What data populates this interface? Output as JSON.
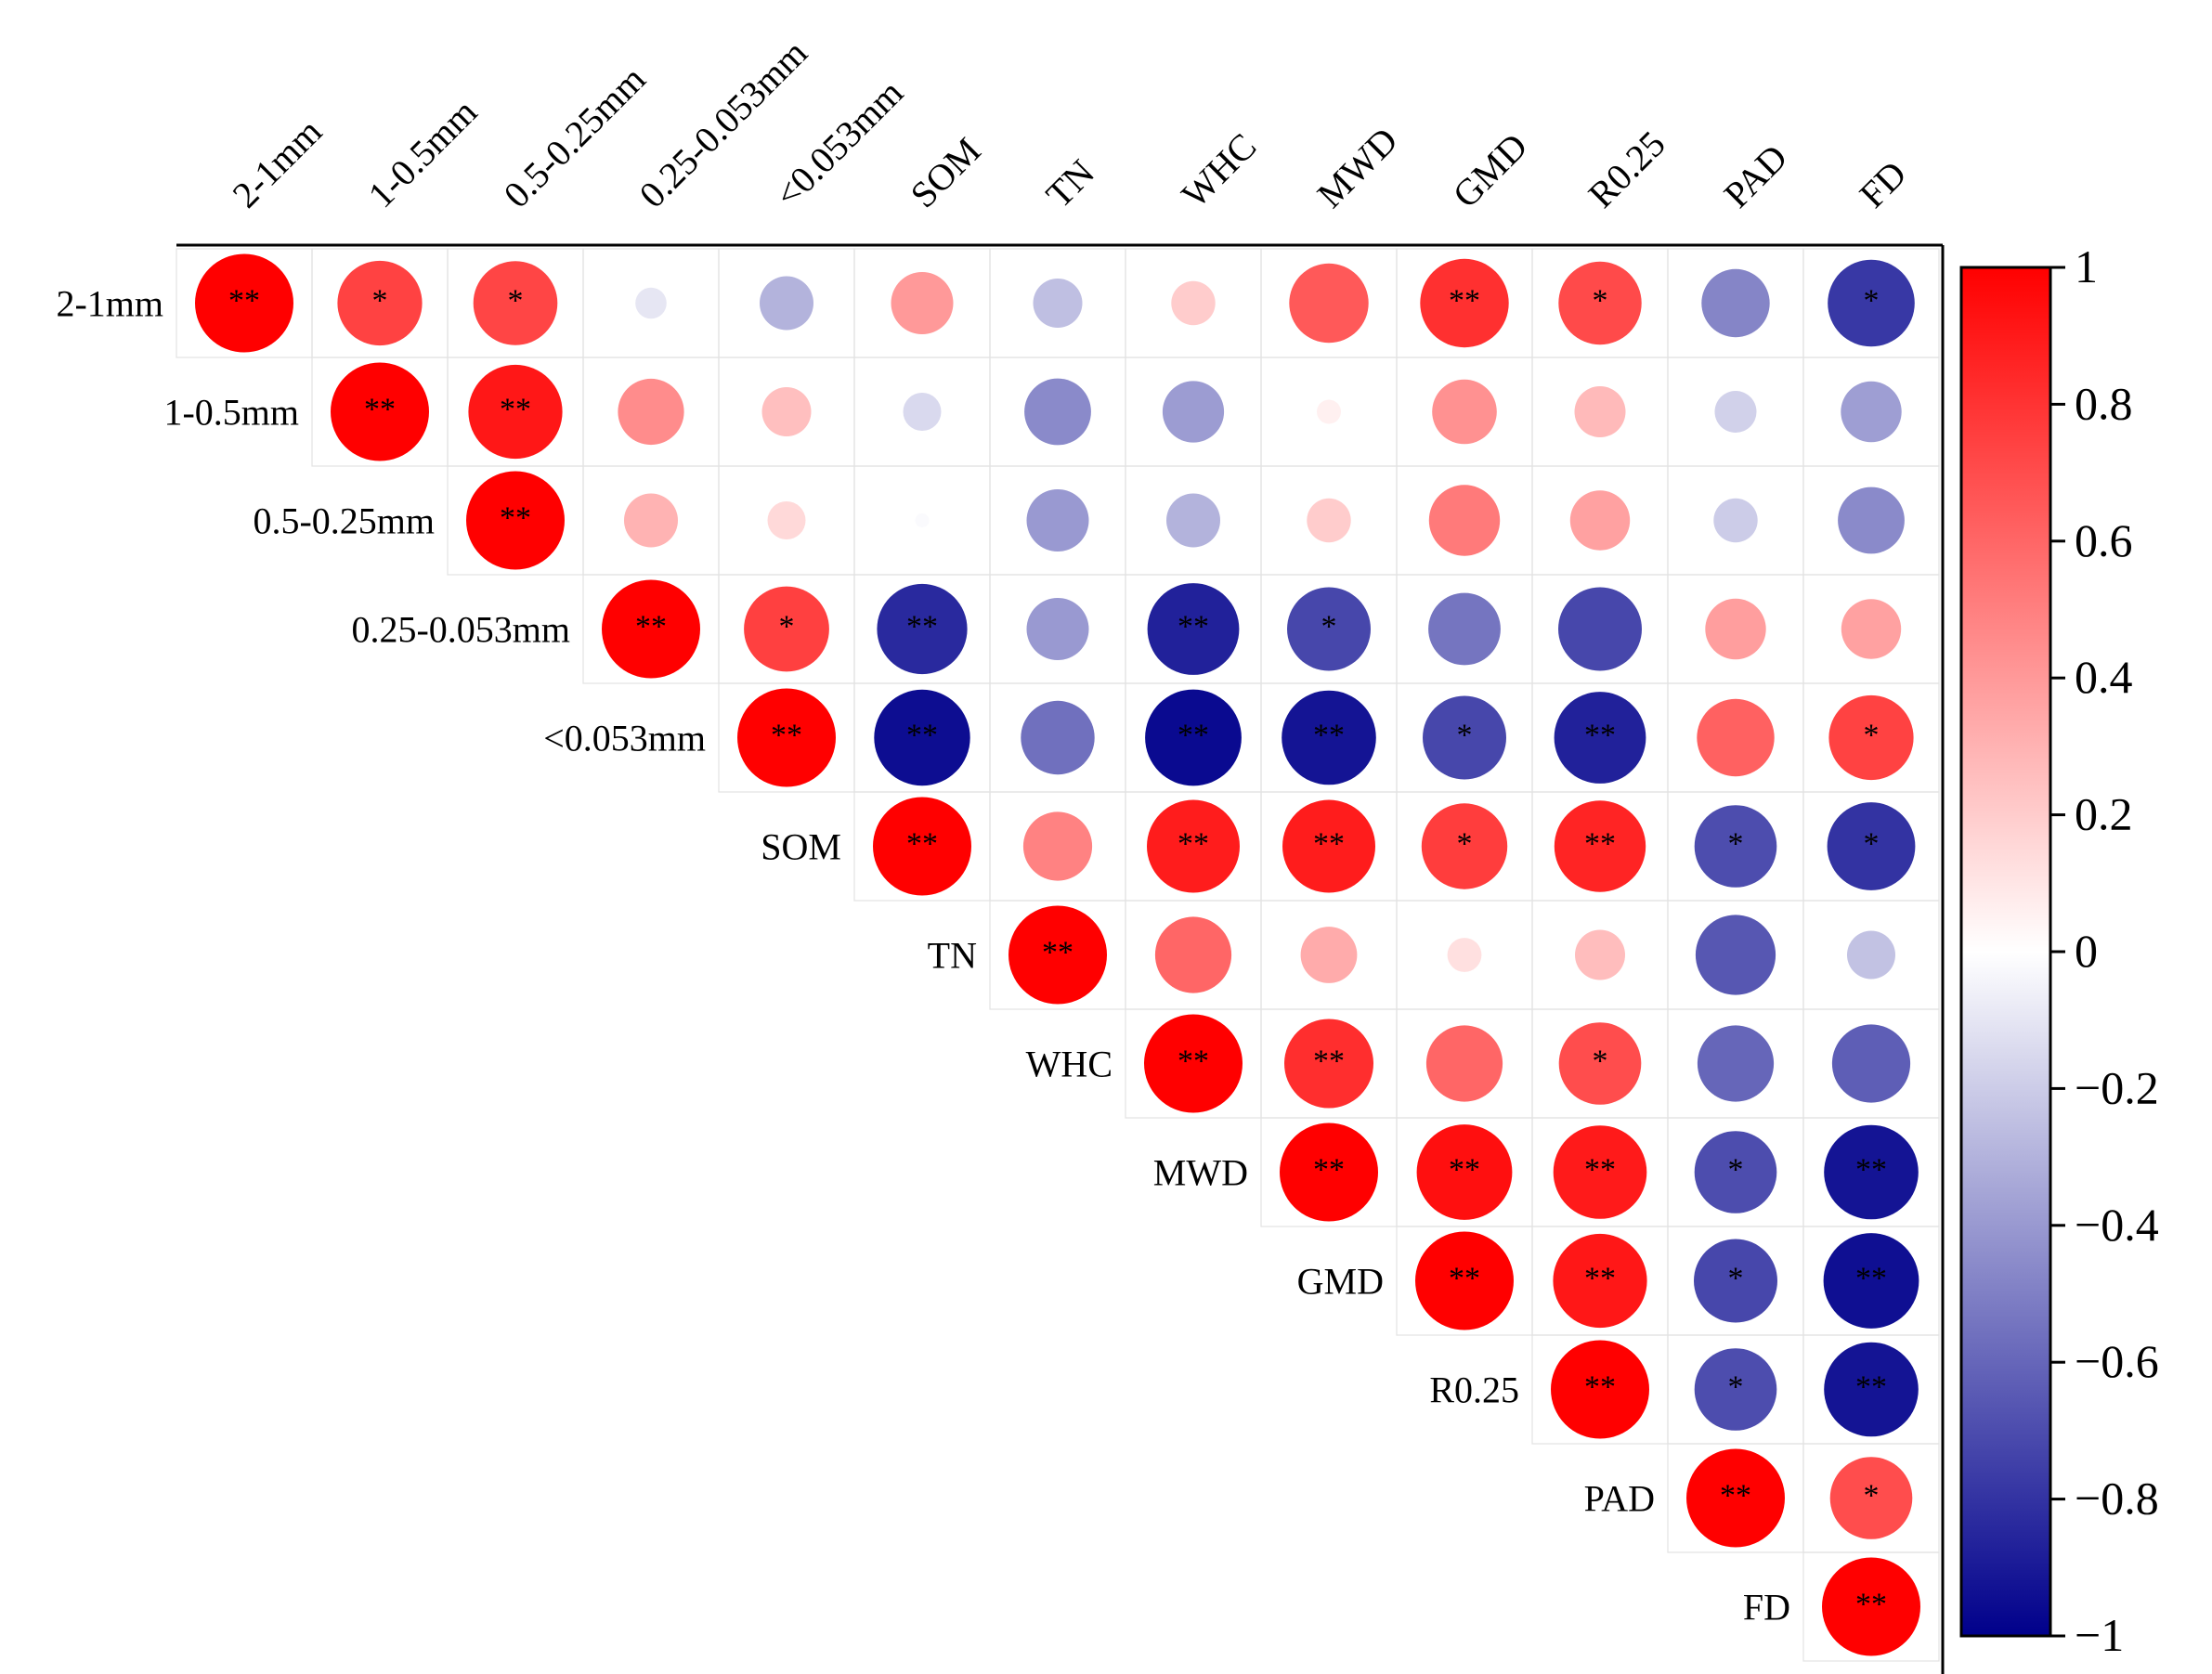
{
  "chart_data": {
    "type": "heatmap",
    "title": "",
    "variables": [
      "2-1mm",
      "1-0.5mm",
      "0.5-0.25mm",
      "0.25-0.053mm",
      "<0.053mm",
      "SOM",
      "TN",
      "WHC",
      "MWD",
      "GMD",
      "R0.25",
      "PAD",
      "FD"
    ],
    "matrix": [
      [
        1.0,
        0.74,
        0.73,
        -0.1,
        -0.3,
        0.4,
        -0.25,
        0.2,
        0.65,
        0.81,
        0.71,
        -0.48,
        -0.78
      ],
      [
        null,
        1.0,
        0.91,
        0.45,
        0.25,
        -0.15,
        -0.46,
        -0.39,
        0.06,
        0.43,
        0.27,
        -0.18,
        -0.38
      ],
      [
        null,
        null,
        1.0,
        0.3,
        0.15,
        -0.02,
        -0.4,
        -0.3,
        0.2,
        0.52,
        0.37,
        -0.2,
        -0.46
      ],
      [
        null,
        null,
        null,
        1.0,
        0.75,
        -0.84,
        -0.4,
        -0.87,
        -0.72,
        -0.54,
        -0.72,
        0.38,
        0.37
      ],
      [
        null,
        null,
        null,
        null,
        1.0,
        -0.95,
        -0.56,
        -0.96,
        -0.92,
        -0.72,
        -0.87,
        0.62,
        0.74
      ],
      [
        null,
        null,
        null,
        null,
        null,
        1.0,
        0.49,
        0.89,
        0.89,
        0.76,
        0.86,
        -0.7,
        -0.8
      ],
      [
        null,
        null,
        null,
        null,
        null,
        null,
        1.0,
        0.6,
        0.33,
        0.12,
        0.26,
        -0.66,
        -0.24
      ],
      [
        null,
        null,
        null,
        null,
        null,
        null,
        null,
        1.0,
        0.82,
        0.6,
        0.7,
        -0.6,
        -0.63
      ],
      [
        null,
        null,
        null,
        null,
        null,
        null,
        null,
        null,
        1.0,
        0.94,
        0.9,
        -0.7,
        -0.92
      ],
      [
        null,
        null,
        null,
        null,
        null,
        null,
        null,
        null,
        null,
        1.0,
        0.91,
        -0.72,
        -0.94
      ],
      [
        null,
        null,
        null,
        null,
        null,
        null,
        null,
        null,
        null,
        null,
        1.0,
        -0.7,
        -0.92
      ],
      [
        null,
        null,
        null,
        null,
        null,
        null,
        null,
        null,
        null,
        null,
        null,
        1.0,
        0.7
      ],
      [
        null,
        null,
        null,
        null,
        null,
        null,
        null,
        null,
        null,
        null,
        null,
        null,
        1.0
      ]
    ],
    "significance": [
      [
        "**",
        "*",
        "*",
        "",
        "",
        "",
        "",
        "",
        "",
        "**",
        "*",
        "",
        "*"
      ],
      [
        null,
        "**",
        "**",
        "",
        "",
        "",
        "",
        "",
        "",
        "",
        "",
        "",
        ""
      ],
      [
        null,
        null,
        "**",
        "",
        "",
        "",
        "",
        "",
        "",
        "",
        "",
        "",
        ""
      ],
      [
        null,
        null,
        null,
        "**",
        "*",
        "**",
        "",
        "**",
        "*",
        "",
        "",
        "",
        ""
      ],
      [
        null,
        null,
        null,
        null,
        "**",
        "**",
        "",
        "**",
        "**",
        "*",
        "**",
        "",
        "*"
      ],
      [
        null,
        null,
        null,
        null,
        null,
        "**",
        "",
        "**",
        "**",
        "*",
        "**",
        "*",
        "*"
      ],
      [
        null,
        null,
        null,
        null,
        null,
        null,
        "**",
        "",
        "",
        "",
        "",
        "",
        ""
      ],
      [
        null,
        null,
        null,
        null,
        null,
        null,
        null,
        "**",
        "**",
        "",
        "*",
        "",
        ""
      ],
      [
        null,
        null,
        null,
        null,
        null,
        null,
        null,
        null,
        "**",
        "**",
        "**",
        "*",
        "**"
      ],
      [
        null,
        null,
        null,
        null,
        null,
        null,
        null,
        null,
        null,
        "**",
        "**",
        "*",
        "**"
      ],
      [
        null,
        null,
        null,
        null,
        null,
        null,
        null,
        null,
        null,
        null,
        "**",
        "*",
        "**"
      ],
      [
        null,
        null,
        null,
        null,
        null,
        null,
        null,
        null,
        null,
        null,
        null,
        "**",
        "*"
      ],
      [
        null,
        null,
        null,
        null,
        null,
        null,
        null,
        null,
        null,
        null,
        null,
        null,
        "**"
      ]
    ],
    "colorbar": {
      "range": [
        -1,
        1
      ],
      "ticks": [
        1,
        0.8,
        0.6,
        0.4,
        0.2,
        0,
        -0.2,
        -0.4,
        -0.6,
        -0.8,
        -1
      ],
      "tick_labels": [
        "1",
        "0.8",
        "0.6",
        "0.4",
        "0.2",
        "0",
        "−0.2",
        "−0.4",
        "−0.6",
        "−0.8",
        "−1"
      ],
      "colors": {
        "positive": "#ff0000",
        "zero": "#ffffff",
        "negative": "#00008b"
      }
    }
  }
}
